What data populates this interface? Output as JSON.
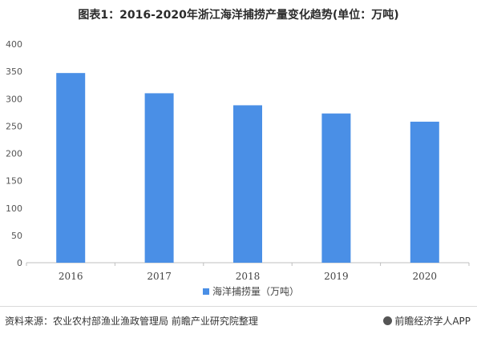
{
  "chart_data": {
    "type": "bar",
    "title": "图表1：2016-2020年浙江海洋捕捞产量变化趋势(单位：万吨)",
    "categories": [
      "2016",
      "2017",
      "2018",
      "2019",
      "2020"
    ],
    "series": [
      {
        "name": "海洋捕捞量（万吨）",
        "values": [
          347,
          310,
          288,
          273,
          258
        ]
      }
    ],
    "ylim": [
      0,
      400
    ],
    "yticks": [
      0,
      50,
      100,
      150,
      200,
      250,
      300,
      350,
      400
    ],
    "grid": false,
    "legend_position": "bottom",
    "bar_color": "#4a8fe6"
  },
  "source_text": "资料来源：农业农村部渔业渔政管理局 前瞻产业研究院整理",
  "brand_text": "前瞻经济学人APP",
  "brand_icon": "brand-logo-icon"
}
